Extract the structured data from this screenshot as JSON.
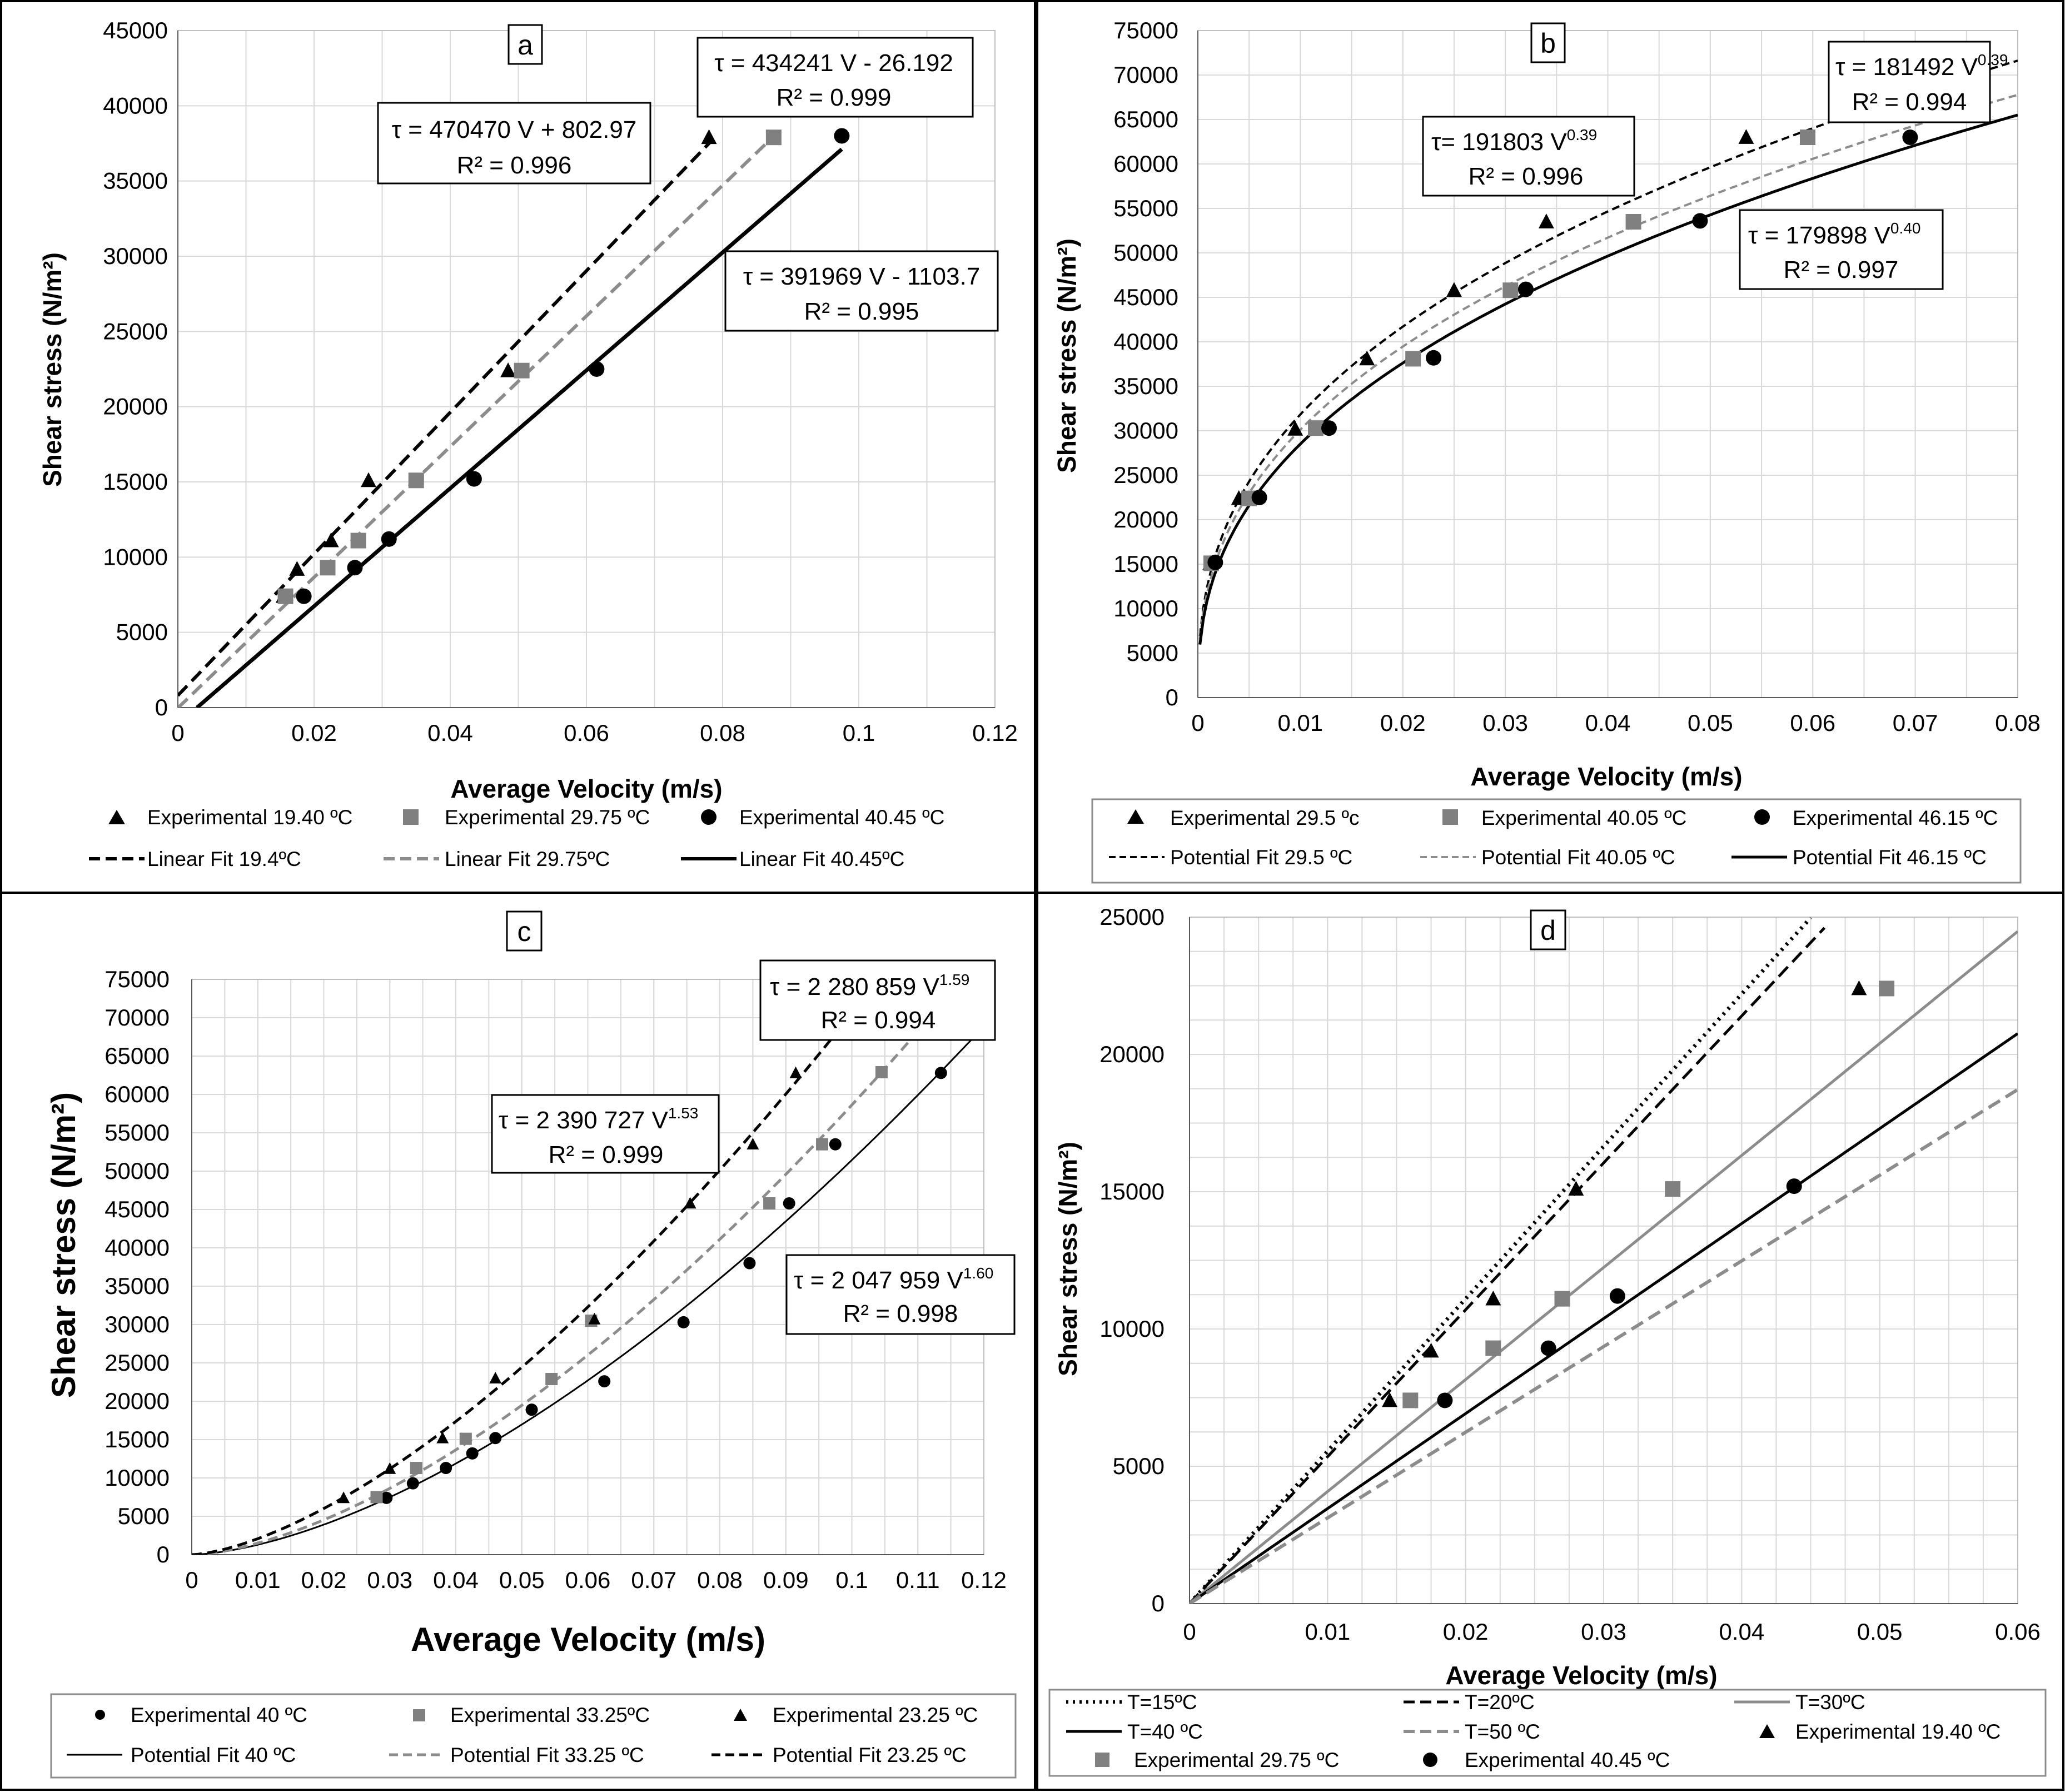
{
  "chart_data": [
    {
      "type": "scatter",
      "id": "a",
      "panel_label": "a",
      "xlabel": "Average Velocity (m/s)",
      "ylabel": "Shear stress (N/m²)",
      "xlim": [
        0,
        0.12
      ],
      "ylim": [
        0,
        45000
      ],
      "x_ticks": [
        0,
        0.02,
        0.04,
        0.06,
        0.08,
        0.1,
        0.12
      ],
      "x_tick_labels": [
        "0",
        "0.02",
        "0.04",
        "0.06",
        "0.08",
        "0.1",
        "0.12"
      ],
      "y_ticks": [
        0,
        5000,
        10000,
        15000,
        20000,
        25000,
        30000,
        35000,
        40000,
        45000
      ],
      "y_tick_labels": [
        "0",
        "5000",
        "10000",
        "15000",
        "20000",
        "25000",
        "30000",
        "35000",
        "40000",
        "45000"
      ],
      "series": [
        {
          "name": "Experimental 19.40 ºC",
          "kind": "points",
          "marker": "triangle",
          "color": "#000000",
          "x": [
            0.0155,
            0.0175,
            0.0225,
            0.028,
            0.0485,
            0.078
          ],
          "y": [
            7400,
            9200,
            11100,
            15100,
            22400,
            37900
          ]
        },
        {
          "name": "Experimental 29.75 ºC",
          "kind": "points",
          "marker": "square",
          "color": "#808080",
          "x": [
            0.0158,
            0.022,
            0.0265,
            0.035,
            0.0505,
            0.0875
          ],
          "y": [
            7400,
            9300,
            11100,
            15100,
            22400,
            37900
          ]
        },
        {
          "name": "Experimental 40.45 ºC",
          "kind": "points",
          "marker": "circle",
          "color": "#000000",
          "x": [
            0.0185,
            0.026,
            0.031,
            0.0435,
            0.0615,
            0.0975
          ],
          "y": [
            7400,
            9300,
            11200,
            15200,
            22500,
            38000
          ]
        },
        {
          "name": "Linear Fit 19.4ºC",
          "kind": "line",
          "dash": "24,12",
          "color": "#000000",
          "width": 6,
          "fn": "linear",
          "a": 470470,
          "b": 802.97,
          "x_range": [
            0,
            0.0785
          ]
        },
        {
          "name": "Linear Fit 29.75ºC",
          "kind": "line",
          "dash": "24,12",
          "color": "#8c8c8c",
          "width": 6,
          "fn": "linear",
          "a": 434241,
          "b": -26.192,
          "x_range": [
            0,
            0.0875
          ]
        },
        {
          "name": "Linear Fit 40.45ºC",
          "kind": "line",
          "dash": "",
          "color": "#000000",
          "width": 7,
          "fn": "linear",
          "a": 391969,
          "b": -1103.7,
          "x_range": [
            0.0028,
            0.0975
          ]
        }
      ],
      "equations": [
        {
          "line1": "τ = 470470 V + 802.97",
          "line2": "R² = 0.996"
        },
        {
          "line1": "τ = 434241 V - 26.192",
          "line2": "R² = 0.999"
        },
        {
          "line1": "τ = 391969 V - 1103.7",
          "line2": "R² = 0.995"
        }
      ]
    },
    {
      "type": "scatter",
      "id": "b",
      "panel_label": "b",
      "xlabel": "Average Velocity (m/s)",
      "ylabel": "Shear stress (N/m²)",
      "xlim": [
        0,
        0.08
      ],
      "ylim": [
        0,
        75000
      ],
      "x_ticks": [
        0,
        0.01,
        0.02,
        0.03,
        0.04,
        0.05,
        0.06,
        0.07,
        0.08
      ],
      "x_tick_labels": [
        "0",
        "0.01",
        "0.02",
        "0.03",
        "0.04",
        "0.05",
        "0.06",
        "0.07",
        "0.08"
      ],
      "y_ticks": [
        0,
        5000,
        10000,
        15000,
        20000,
        25000,
        30000,
        35000,
        40000,
        45000,
        50000,
        55000,
        60000,
        65000,
        70000,
        75000
      ],
      "y_tick_labels": [
        "0",
        "5000",
        "10000",
        "15000",
        "20000",
        "25000",
        "30000",
        "35000",
        "40000",
        "45000",
        "50000",
        "55000",
        "60000",
        "65000",
        "70000",
        "75000"
      ],
      "series": [
        {
          "name": "Experimental 29.5 ºc",
          "kind": "points",
          "marker": "triangle",
          "color": "#000000",
          "x": [
            0.0012,
            0.004,
            0.0095,
            0.0165,
            0.025,
            0.034,
            0.0535
          ],
          "y": [
            15100,
            22400,
            30200,
            38100,
            45800,
            53500,
            63000
          ]
        },
        {
          "name": "Experimental 40.05 ºC",
          "kind": "points",
          "marker": "square",
          "color": "#808080",
          "x": [
            0.0013,
            0.005,
            0.0115,
            0.021,
            0.0305,
            0.0425,
            0.0595
          ],
          "y": [
            15100,
            22400,
            30300,
            38100,
            45800,
            53500,
            63000
          ]
        },
        {
          "name": "Experimental 46.15 ºC",
          "kind": "points",
          "marker": "circle",
          "color": "#000000",
          "x": [
            0.0017,
            0.006,
            0.0128,
            0.023,
            0.032,
            0.049,
            0.0695
          ],
          "y": [
            15200,
            22500,
            30300,
            38200,
            45900,
            53600,
            63000
          ]
        },
        {
          "name": "Potential Fit 29.5 ºC",
          "kind": "line",
          "dash": "14,8",
          "color": "#000000",
          "width": 4,
          "fn": "power",
          "a": 191803,
          "b": 0.39,
          "x_range": [
            0.0002,
            0.08
          ]
        },
        {
          "name": "Potential Fit 40.05 ºC",
          "kind": "line",
          "dash": "14,8",
          "color": "#8c8c8c",
          "width": 4,
          "fn": "power",
          "a": 181492,
          "b": 0.39,
          "x_range": [
            0.0002,
            0.08
          ]
        },
        {
          "name": "Potential Fit 46.15 ºC",
          "kind": "line",
          "dash": "",
          "color": "#000000",
          "width": 5,
          "fn": "power",
          "a": 179898,
          "b": 0.4,
          "x_range": [
            0.0002,
            0.08
          ]
        }
      ],
      "equations": [
        {
          "line1": "τ= 191803 V",
          "sup": "0.39",
          "line2": "R² = 0.996"
        },
        {
          "line1": "τ = 181492 V",
          "sup": "0.39",
          "line2": "R² = 0.994"
        },
        {
          "line1": "τ = 179898 V",
          "sup": "0.40",
          "line2": "R² = 0.997"
        }
      ]
    },
    {
      "type": "scatter",
      "id": "c",
      "panel_label": "c",
      "xlabel": "Average Velocity (m/s)",
      "ylabel": "Shear stress (N/m²)",
      "xlim": [
        0,
        0.12
      ],
      "ylim": [
        0,
        75000
      ],
      "x_ticks": [
        0,
        0.01,
        0.02,
        0.03,
        0.04,
        0.05,
        0.06,
        0.07,
        0.08,
        0.09,
        0.1,
        0.11,
        0.12
      ],
      "x_tick_labels": [
        "0",
        "0.01",
        "0.02",
        "0.03",
        "0.04",
        "0.05",
        "0.06",
        "0.07",
        "0.08",
        "0.09",
        "0.1",
        "0.11",
        "0.12"
      ],
      "y_ticks": [
        0,
        5000,
        10000,
        15000,
        20000,
        25000,
        30000,
        35000,
        40000,
        45000,
        50000,
        55000,
        60000,
        65000,
        70000,
        75000
      ],
      "y_tick_labels": [
        "0",
        "5000",
        "10000",
        "15000",
        "20000",
        "25000",
        "30000",
        "35000",
        "40000",
        "45000",
        "50000",
        "55000",
        "60000",
        "65000",
        "70000",
        "75000"
      ],
      "series": [
        {
          "name": "Experimental 40 ºC",
          "kind": "points",
          "marker": "circle",
          "color": "#000000",
          "x": [
            0.0295,
            0.0335,
            0.0385,
            0.0425,
            0.046,
            0.0515,
            0.0625,
            0.0745,
            0.0845,
            0.0905,
            0.0975,
            0.1135
          ],
          "y": [
            7400,
            9300,
            11300,
            13200,
            15200,
            18900,
            22600,
            30300,
            38000,
            45800,
            53500,
            62800
          ]
        },
        {
          "name": "Experimental 33.25ºC",
          "kind": "points",
          "marker": "square",
          "color": "#808080",
          "x": [
            0.028,
            0.034,
            0.0415,
            0.0545,
            0.0605,
            0.0875,
            0.0955,
            0.1045
          ],
          "y": [
            7500,
            11300,
            15100,
            22900,
            30500,
            45800,
            53500,
            62900
          ]
        },
        {
          "name": "Experimental 23.25 ºC",
          "kind": "points",
          "marker": "triangle",
          "color": "#000000",
          "x": [
            0.023,
            0.03,
            0.038,
            0.046,
            0.061,
            0.0755,
            0.085,
            0.0915
          ],
          "y": [
            7400,
            11200,
            15200,
            23000,
            30700,
            45800,
            53500,
            62800
          ]
        },
        {
          "name": "Potential Fit 40 ºC",
          "kind": "line",
          "dash": "",
          "color": "#000000",
          "width": 3,
          "fn": "power",
          "a": 2047959,
          "b": 1.6,
          "x_range": [
            0,
            0.12
          ]
        },
        {
          "name": "Potential Fit 33.25 ºC",
          "kind": "line",
          "dash": "18,10",
          "color": "#8c8c8c",
          "width": 5,
          "fn": "power",
          "a": 2280859,
          "b": 1.59,
          "x_range": [
            0,
            0.12
          ]
        },
        {
          "name": "Potential Fit 23.25 ºC",
          "kind": "line",
          "dash": "18,10",
          "color": "#000000",
          "width": 5,
          "fn": "power",
          "a": 2390727,
          "b": 1.53,
          "x_range": [
            0,
            0.12
          ]
        }
      ],
      "equations": [
        {
          "line1": "τ = 2 280 859 V",
          "sup": "1.59",
          "line2": "R² = 0.994"
        },
        {
          "line1": "τ = 2 390 727 V",
          "sup": "1.53",
          "line2": "R² = 0.999"
        },
        {
          "line1": "τ = 2 047 959 V",
          "sup": "1.60",
          "line2": "R² = 0.998"
        }
      ]
    },
    {
      "type": "scatter",
      "id": "d",
      "panel_label": "d",
      "xlabel": "Average Velocity (m/s)",
      "ylabel": "Shear stress (N/m²)",
      "xlim": [
        0,
        0.06
      ],
      "ylim": [
        0,
        25000
      ],
      "x_ticks": [
        0,
        0.01,
        0.02,
        0.03,
        0.04,
        0.05,
        0.06
      ],
      "x_tick_labels": [
        "0",
        "0.01",
        "0.02",
        "0.03",
        "0.04",
        "0.05",
        "0.06"
      ],
      "y_ticks": [
        0,
        5000,
        10000,
        15000,
        20000,
        25000
      ],
      "y_tick_labels": [
        "0",
        "5000",
        "10000",
        "15000",
        "20000",
        "25000"
      ],
      "series": [
        {
          "name": "T=15ºC",
          "kind": "line",
          "dash": "4,9",
          "color": "#000000",
          "width": 7,
          "fn": "linear",
          "a": 555000,
          "b": 0,
          "x_range": [
            0,
            0.045
          ]
        },
        {
          "name": "T=20ºC",
          "kind": "line",
          "dash": "24,12",
          "color": "#000000",
          "width": 5,
          "fn": "linear",
          "a": 535000,
          "b": 0,
          "x_range": [
            0,
            0.046
          ]
        },
        {
          "name": "T=30ºC",
          "kind": "line",
          "dash": "",
          "color": "#8c8c8c",
          "width": 5,
          "fn": "linear",
          "a": 408000,
          "b": 0,
          "x_range": [
            0,
            0.06
          ]
        },
        {
          "name": "T=40 ºC",
          "kind": "line",
          "dash": "",
          "color": "#000000",
          "width": 5,
          "fn": "linear",
          "a": 346000,
          "b": 0,
          "x_range": [
            0,
            0.06
          ]
        },
        {
          "name": "T=50 ºC",
          "kind": "line",
          "dash": "24,12",
          "color": "#8c8c8c",
          "width": 6,
          "fn": "linear",
          "a": 312000,
          "b": 0,
          "x_range": [
            0,
            0.06
          ]
        },
        {
          "name": "Experimental 19.40 ºC",
          "kind": "points",
          "marker": "triangle",
          "color": "#000000",
          "x": [
            0.0145,
            0.0175,
            0.022,
            0.028,
            0.0485
          ],
          "y": [
            7400,
            9200,
            11100,
            15100,
            22400
          ]
        },
        {
          "name": "Experimental 29.75 ºC",
          "kind": "points",
          "marker": "square",
          "color": "#808080",
          "x": [
            0.016,
            0.022,
            0.027,
            0.035,
            0.0505
          ],
          "y": [
            7400,
            9300,
            11100,
            15100,
            22400
          ]
        },
        {
          "name": "Experimental 40.45 ºC",
          "kind": "points",
          "marker": "circle",
          "color": "#000000",
          "x": [
            0.0185,
            0.026,
            0.031,
            0.0438
          ],
          "y": [
            7400,
            9300,
            11200,
            15200
          ]
        }
      ],
      "equations": []
    }
  ]
}
